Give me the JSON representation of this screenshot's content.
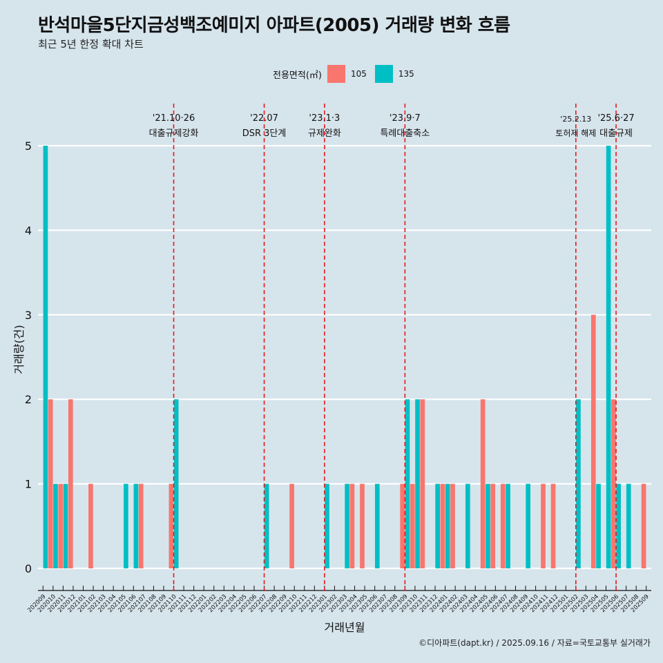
{
  "title": "반석마을5단지금성백조예미지 아파트(2005) 거래량 변화 흐름",
  "subtitle": "최근 5년 한정 확대 차트",
  "caption": "©디아파트(dapt.kr) / 2025.09.16 / 자료=국토교통부 실거래가",
  "legend": {
    "title": "전용면적(㎡)",
    "items": [
      {
        "label": "105",
        "color": "#f8766d"
      },
      {
        "label": "135",
        "color": "#00bfc4"
      }
    ]
  },
  "chart_data": {
    "type": "bar",
    "xlabel": "거래년월",
    "ylabel": "거래량(건)",
    "ylim": [
      0,
      5
    ],
    "y_ticks": [
      0,
      1,
      2,
      3,
      4,
      5
    ],
    "categories": [
      "202009",
      "202010",
      "202011",
      "202012",
      "202101",
      "202102",
      "202103",
      "202104",
      "202105",
      "202106",
      "202107",
      "202108",
      "202109",
      "202110",
      "202111",
      "202112",
      "202201",
      "202202",
      "202203",
      "202204",
      "202205",
      "202206",
      "202207",
      "202208",
      "202209",
      "202210",
      "202211",
      "202212",
      "202301",
      "202302",
      "202303",
      "202304",
      "202305",
      "202306",
      "202307",
      "202308",
      "202309",
      "202310",
      "202311",
      "202312",
      "202401",
      "202402",
      "202403",
      "202404",
      "202405",
      "202406",
      "202407",
      "202408",
      "202409",
      "202410",
      "202411",
      "202412",
      "202501",
      "202502",
      "202503",
      "202504",
      "202505",
      "202506",
      "202507",
      "202508",
      "202509"
    ],
    "series": [
      {
        "name": "105",
        "color": "#f8766d",
        "values": [
          0,
          2,
          1,
          2,
          0,
          1,
          0,
          0,
          0,
          0,
          1,
          0,
          0,
          1,
          0,
          0,
          0,
          0,
          0,
          0,
          0,
          0,
          0,
          0,
          0,
          1,
          0,
          0,
          0,
          0,
          0,
          1,
          1,
          0,
          0,
          0,
          1,
          1,
          2,
          0,
          1,
          1,
          0,
          0,
          2,
          1,
          1,
          0,
          0,
          0,
          1,
          1,
          0,
          0,
          0,
          3,
          0,
          2,
          0,
          0,
          1
        ]
      },
      {
        "name": "135",
        "color": "#00bfc4",
        "values": [
          5,
          1,
          1,
          0,
          0,
          0,
          0,
          0,
          1,
          1,
          0,
          0,
          0,
          2,
          0,
          0,
          0,
          0,
          0,
          0,
          0,
          0,
          1,
          0,
          0,
          0,
          0,
          0,
          1,
          0,
          1,
          0,
          0,
          1,
          0,
          0,
          2,
          2,
          0,
          1,
          1,
          0,
          1,
          0,
          1,
          0,
          1,
          0,
          1,
          0,
          0,
          0,
          0,
          2,
          0,
          1,
          5,
          1,
          1,
          0,
          0
        ]
      }
    ],
    "events": [
      {
        "date_label": "'21.10·26",
        "name": "대출규제강화",
        "category": "202110"
      },
      {
        "date_label": "'22.07",
        "name": "DSR 3단계",
        "category": "202207"
      },
      {
        "date_label": "'23.1·3",
        "name": "규제완화",
        "category": "202301"
      },
      {
        "date_label": "'23.9·7",
        "name": "특례대출축소",
        "category": "202309"
      },
      {
        "date_label": "'25.2.13",
        "name": "토허제 해제",
        "category": "202502"
      },
      {
        "date_label": "'25.6·27",
        "name": "대출규제",
        "category": "202506"
      }
    ],
    "event_line_color": "#e41a1c",
    "grid": true
  }
}
